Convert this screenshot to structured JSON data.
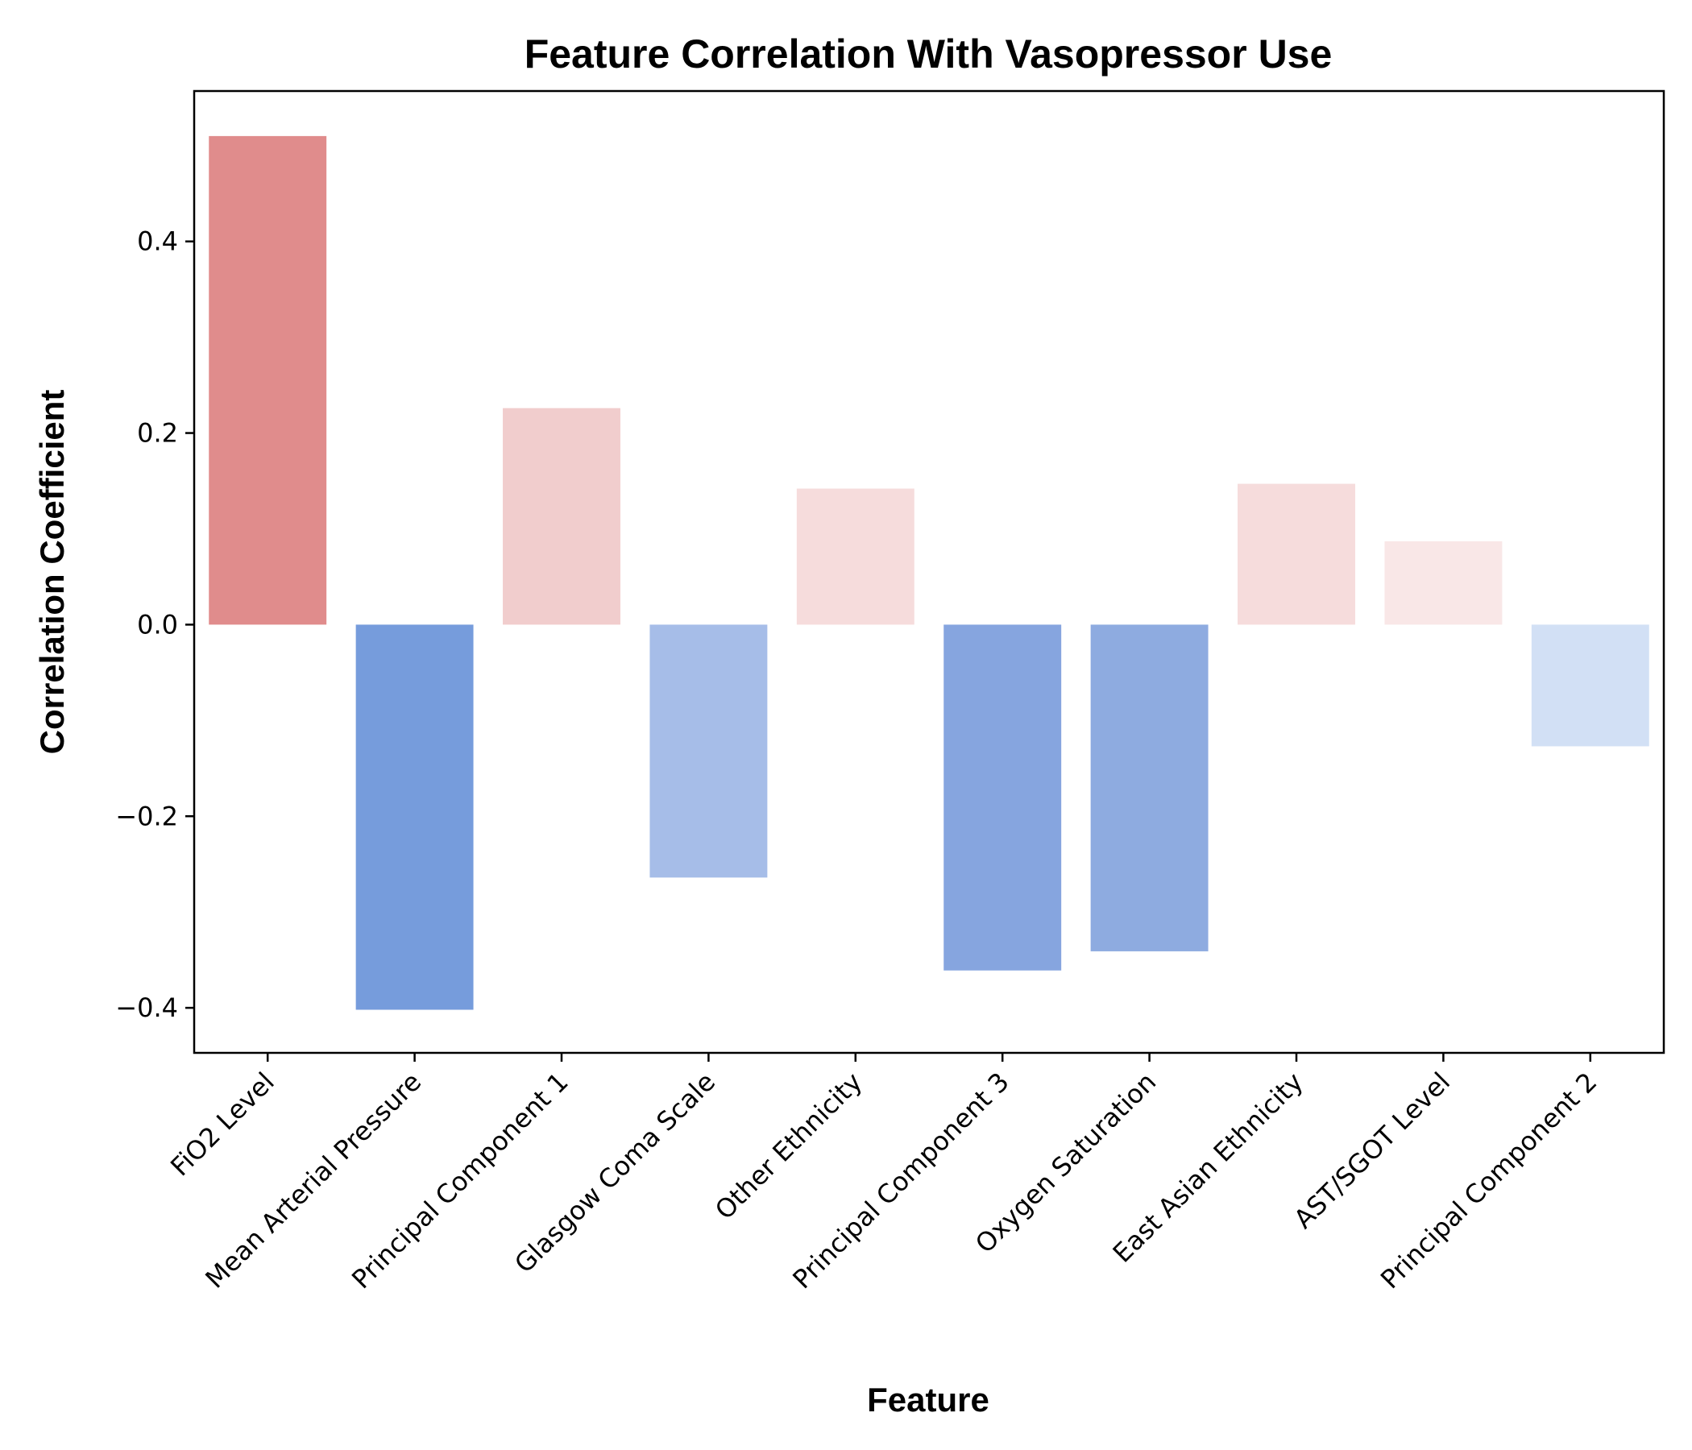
{
  "chart_data": {
    "type": "bar",
    "title": "Feature Correlation With Vasopressor Use",
    "xlabel": "Feature",
    "ylabel": "Correlation Coefficient",
    "categories": [
      "FiO2 Level",
      "Mean Arterial Pressure",
      "Principal Component 1",
      "Glasgow Coma Scale",
      "Other Ethnicity",
      "Principal Component 3",
      "Oxygen Saturation",
      "East Asian Ethnicity",
      "AST/SGOT Level",
      "Principal Component 2"
    ],
    "values": [
      0.51,
      -0.402,
      0.226,
      -0.264,
      0.142,
      -0.361,
      -0.341,
      0.147,
      0.087,
      -0.127
    ],
    "colors": [
      "#e08c8c",
      "#769cdc",
      "#f1cdcd",
      "#a6bde8",
      "#f6dcdc",
      "#86a5df",
      "#8eabe0",
      "#f6dcdc",
      "#f9e7e7",
      "#d2e0f5"
    ],
    "yticks": [
      -0.4,
      -0.2,
      0.0,
      0.2,
      0.4
    ],
    "ytick_labels": [
      "−0.4",
      "−0.2",
      "0.0",
      "0.2",
      "0.4"
    ],
    "ylim": [
      -0.447,
      0.557
    ],
    "grid": false
  }
}
